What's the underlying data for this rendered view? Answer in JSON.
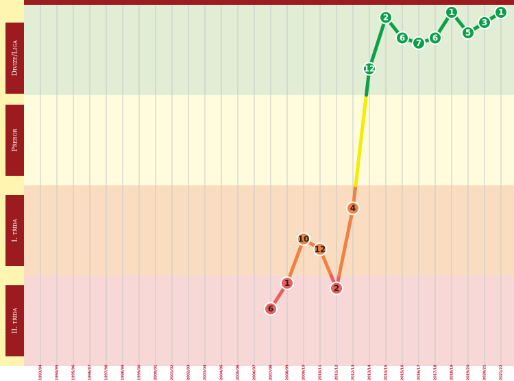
{
  "chart_data": {
    "type": "line",
    "categories": [
      "1993/94",
      "1994/95",
      "1995/96",
      "1996/97",
      "1997/98",
      "1998/99",
      "1999/00",
      "2000/01",
      "2001/02",
      "2002/03",
      "2003/04",
      "2004/05",
      "2005/06",
      "2006/07",
      "2007/08",
      "2008/09",
      "2009/10",
      "2010/11",
      "2011/12",
      "2012/13",
      "2013/14",
      "2014/15",
      "2015/16",
      "2016/17",
      "2017/18",
      "2018/19",
      "2019/20",
      "2020/21",
      "2021/22"
    ],
    "series": [
      {
        "name": "II. třída",
        "color": "#e8605e",
        "band_color": "#f8d8d6",
        "values": [
          null,
          null,
          null,
          null,
          null,
          null,
          null,
          null,
          null,
          null,
          null,
          null,
          null,
          null,
          6,
          1,
          null,
          null,
          2,
          null,
          null,
          null,
          null,
          null,
          null,
          null,
          null,
          null,
          null
        ]
      },
      {
        "name": "I. třída",
        "color": "#f08044",
        "band_color": "#fadcc0",
        "values": [
          null,
          null,
          null,
          null,
          null,
          null,
          null,
          null,
          null,
          null,
          null,
          null,
          null,
          null,
          null,
          null,
          10,
          12,
          null,
          4,
          null,
          null,
          null,
          null,
          null,
          null,
          null,
          null,
          null
        ]
      },
      {
        "name": "Přebor",
        "color": "#f5ec00",
        "band_color": "#fefcdc",
        "values": [
          null,
          null,
          null,
          null,
          null,
          null,
          null,
          null,
          null,
          null,
          null,
          null,
          null,
          null,
          null,
          null,
          null,
          null,
          null,
          null,
          null,
          null,
          null,
          null,
          null,
          null,
          null,
          null,
          null
        ]
      },
      {
        "name": "Divize/Liga",
        "color": "#0aa04a",
        "band_color": "#e1edd4",
        "values": [
          null,
          null,
          null,
          null,
          null,
          null,
          null,
          null,
          null,
          null,
          null,
          null,
          null,
          null,
          null,
          null,
          null,
          null,
          null,
          null,
          12,
          2,
          6,
          7,
          6,
          1,
          5,
          3,
          1
        ]
      }
    ]
  }
}
